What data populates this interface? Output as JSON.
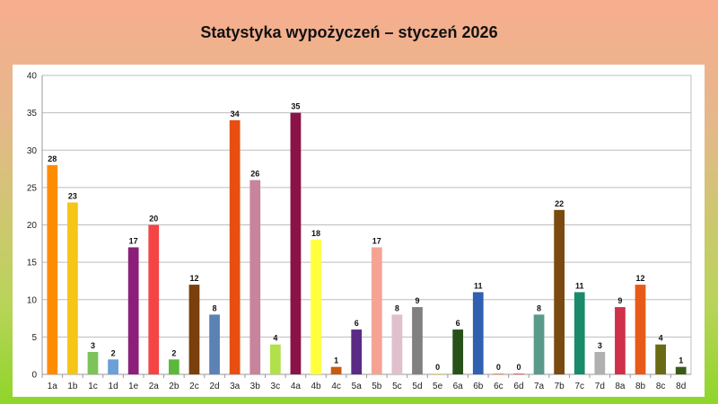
{
  "chart_data": {
    "type": "bar",
    "title": "Statystyka wypożyczeń – styczeń 2026",
    "xlabel": "",
    "ylabel": "",
    "ylim": [
      0,
      40
    ],
    "yticks": [
      0,
      5,
      10,
      15,
      20,
      25,
      30,
      35,
      40
    ],
    "grid": true,
    "legend": "none",
    "categories": [
      "1a",
      "1b",
      "1c",
      "1d",
      "1e",
      "2a",
      "2b",
      "2c",
      "2d",
      "3a",
      "3b",
      "3c",
      "4a",
      "4b",
      "4c",
      "5a",
      "5b",
      "5c",
      "5d",
      "5e",
      "6a",
      "6b",
      "6c",
      "6d",
      "7a",
      "7b",
      "7c",
      "7d",
      "8a",
      "8b",
      "8c",
      "8d"
    ],
    "values": [
      28,
      23,
      3,
      2,
      17,
      20,
      2,
      12,
      8,
      34,
      26,
      4,
      35,
      18,
      1,
      6,
      17,
      8,
      9,
      0,
      6,
      11,
      0,
      0,
      8,
      22,
      11,
      3,
      9,
      12,
      4,
      1
    ],
    "colors": [
      "#ff8c00",
      "#f5c518",
      "#7cc35a",
      "#6a9fd8",
      "#8b1f7a",
      "#f44444",
      "#5cb83c",
      "#7a3f0a",
      "#5b82b4",
      "#e84e0f",
      "#c8849c",
      "#b0e04a",
      "#8a1246",
      "#ffff3c",
      "#c85a14",
      "#5a2b84",
      "#f5a494",
      "#e0c0cc",
      "#808080",
      "#ffd24a",
      "#27511a",
      "#3060b0",
      "#ff8c3c",
      "#ff6060",
      "#5a9a8a",
      "#7a4a10",
      "#1a8a6a",
      "#b0b0b0",
      "#d0304a",
      "#e85a1a",
      "#6a6a14",
      "#3a5a1a"
    ]
  }
}
